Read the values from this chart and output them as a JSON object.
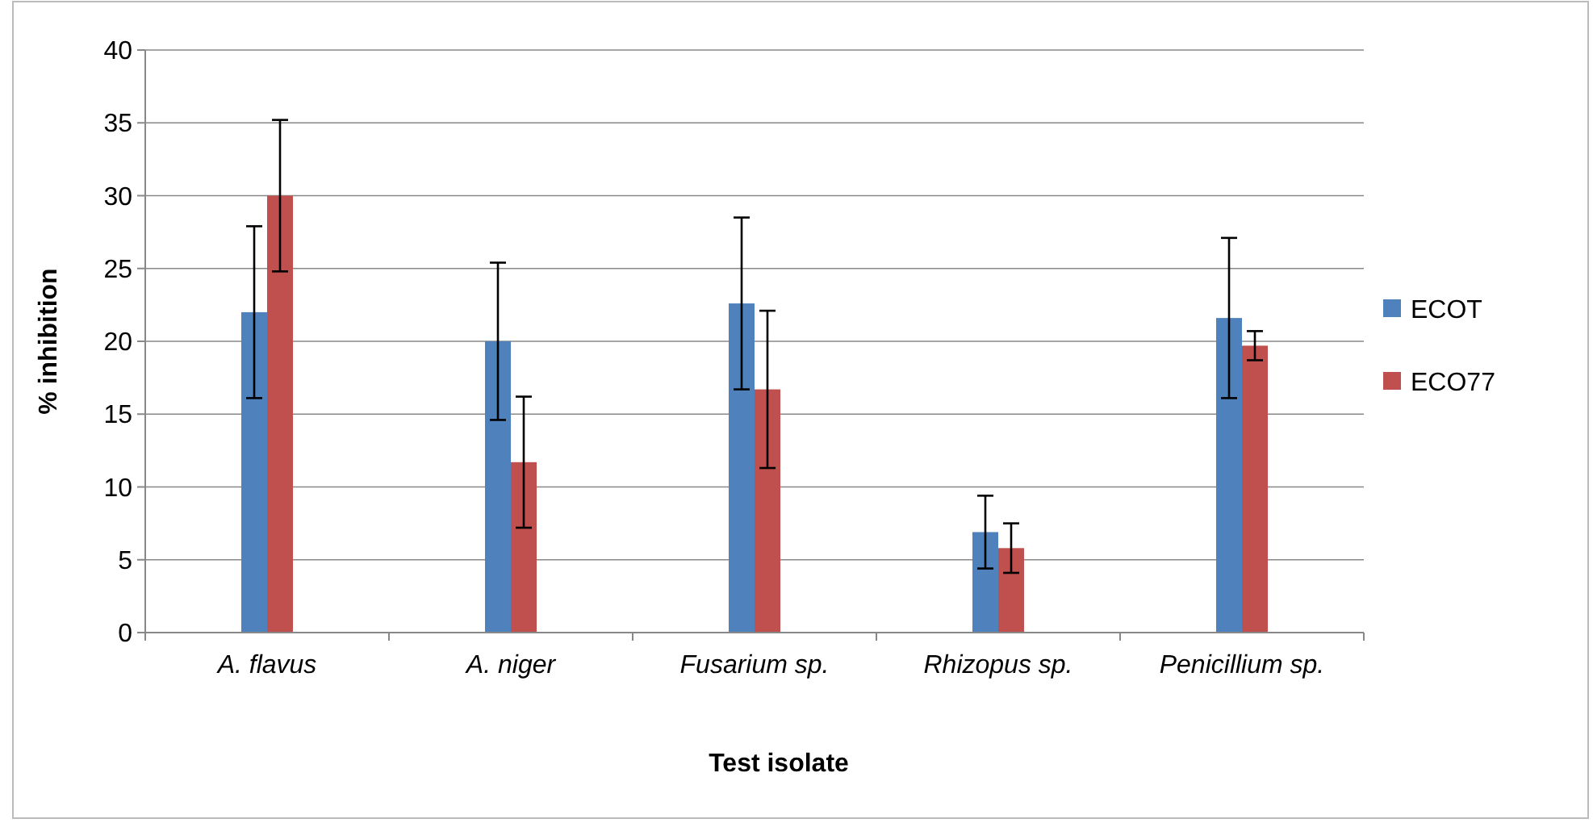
{
  "chart_data": {
    "type": "bar",
    "xlabel": "Test isolate",
    "ylabel": "% inhibition",
    "categories": [
      "A. flavus",
      "A. niger",
      "Fusarium sp.",
      "Rhizopus sp.",
      "Penicillium sp."
    ],
    "series": [
      {
        "name": "ECOT",
        "color": "#4f81bd",
        "values": [
          22,
          20,
          22.6,
          6.9,
          21.6
        ],
        "errors": [
          5.9,
          5.4,
          5.9,
          2.5,
          5.5
        ]
      },
      {
        "name": "ECO77",
        "color": "#c0504d",
        "values": [
          30,
          11.7,
          16.7,
          5.8,
          19.7
        ],
        "errors": [
          5.2,
          4.5,
          5.4,
          1.7,
          1
        ]
      }
    ],
    "ylim": [
      0,
      40
    ],
    "yticks": [
      0,
      5,
      10,
      15,
      20,
      25,
      30,
      35,
      40
    ],
    "grid": "y",
    "legend": "right"
  }
}
